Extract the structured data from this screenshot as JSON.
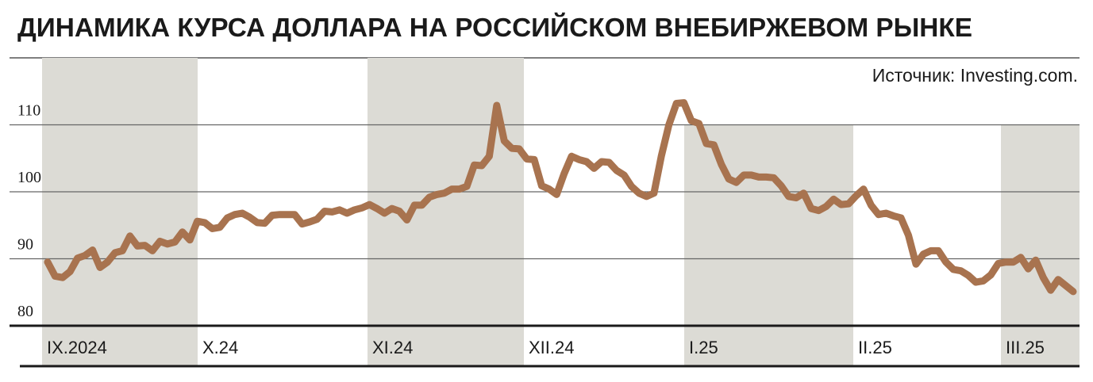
{
  "chart_data": {
    "type": "line",
    "title": "ДИНАМИКА КУРСА ДОЛЛАРА НА РОССИЙСКОМ ВНЕБИРЖЕВОМ РЫНКЕ",
    "source": "Источник: Investing.com.",
    "x_labels": [
      "IX.2024",
      "X.24",
      "XI.24",
      "XII.24",
      "I.25",
      "II.25",
      "III.25"
    ],
    "color": "#a8734f",
    "values": [
      89.5,
      87.4,
      87.2,
      88.1,
      90.1,
      90.5,
      91.3,
      88.7,
      89.5,
      90.9,
      91.2,
      93.4,
      91.9,
      92.0,
      91.2,
      92.6,
      92.2,
      92.5,
      94.0,
      92.8,
      95.6,
      95.4,
      94.5,
      94.7,
      96.1,
      96.6,
      96.8,
      96.2,
      95.4,
      95.3,
      96.5,
      96.6,
      96.6,
      96.6,
      95.2,
      95.5,
      95.9,
      97.1,
      97.0,
      97.3,
      96.8,
      97.3,
      97.6,
      98.1,
      97.5,
      96.8,
      97.5,
      97.1,
      95.8,
      98.0,
      98.0,
      99.2,
      99.6,
      99.8,
      100.4,
      100.4,
      100.8,
      104.0,
      103.9,
      105.3,
      112.9,
      107.6,
      106.5,
      106.4,
      104.9,
      104.8,
      100.9,
      100.4,
      99.6,
      102.7,
      105.3,
      104.8,
      104.5,
      103.5,
      104.5,
      104.4,
      103.2,
      102.5,
      100.8,
      99.8,
      99.3,
      99.8,
      105.4,
      110.0,
      113.2,
      113.3,
      110.6,
      110.2,
      107.2,
      107.0,
      104.1,
      101.9,
      101.4,
      102.5,
      102.5,
      102.2,
      102.2,
      102.1,
      100.9,
      99.3,
      99.1,
      99.8,
      97.5,
      97.2,
      97.8,
      98.9,
      98.1,
      98.2,
      99.4,
      100.4,
      98.0,
      96.6,
      96.8,
      96.4,
      96.1,
      93.5,
      89.2,
      90.7,
      91.2,
      91.2,
      89.5,
      88.4,
      88.2,
      87.5,
      86.5,
      86.7,
      87.6,
      89.3,
      89.5,
      89.5,
      90.2,
      88.5,
      89.8,
      87.2,
      85.3,
      86.9,
      86.0,
      85.1
    ],
    "ylim": [
      80,
      120
    ],
    "yticks": [
      80,
      90,
      100,
      110
    ],
    "grid": true
  }
}
